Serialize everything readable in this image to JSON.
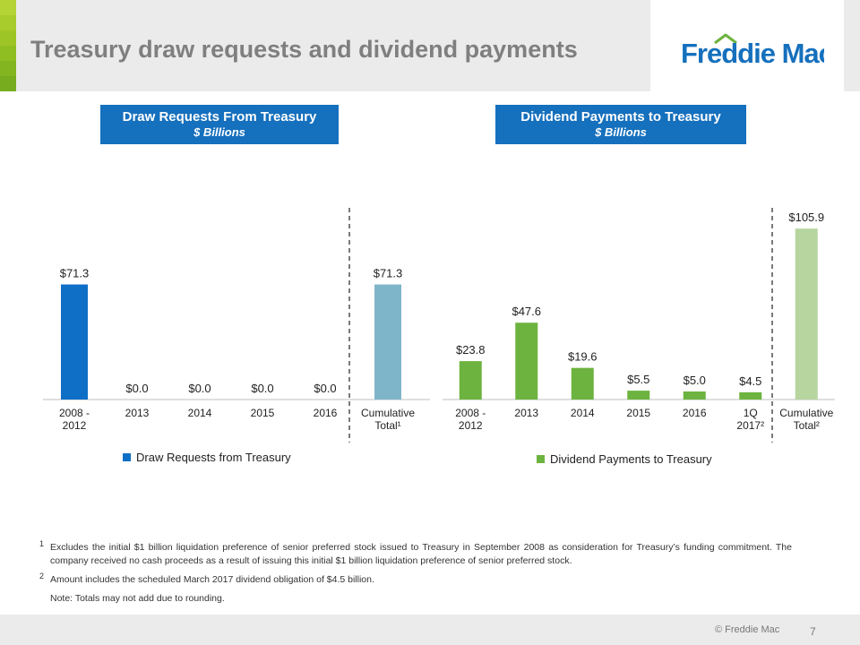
{
  "header": {
    "title": "Treasury draw requests and dividend payments",
    "brand": "Freddie Mac",
    "accent_colors": [
      "#b5d334",
      "#a8cc2b",
      "#9dc525",
      "#8fbe22",
      "#83b520",
      "#76ac1e"
    ]
  },
  "sections": {
    "draw": {
      "title": "Draw Requests From Treasury",
      "subtitle": "$ Billions"
    },
    "dividend": {
      "title": "Dividend Payments to Treasury",
      "subtitle": "$ Billions"
    }
  },
  "chart_data": [
    {
      "type": "bar",
      "title": "Draw Requests From Treasury",
      "subtitle": "$ Billions",
      "categories": [
        "2008 -\n2012",
        "2013",
        "2014",
        "2015",
        "2016",
        "Cumulative\nTotal¹"
      ],
      "series": [
        {
          "name": "Draw Requests from Treasury",
          "values": [
            71.3,
            0.0,
            0.0,
            0.0,
            0.0,
            71.3
          ]
        }
      ],
      "data_labels": [
        "$71.3",
        "$0.0",
        "$0.0",
        "$0.0",
        "$0.0",
        "$71.3"
      ],
      "colors": [
        "#0f6fc6",
        "#0f6fc6",
        "#0f6fc6",
        "#0f6fc6",
        "#0f6fc6",
        "#7fb5c9"
      ],
      "legend_color": "#0f6fc6",
      "ylim": [
        0,
        106
      ],
      "legend": "bottom"
    },
    {
      "type": "bar",
      "title": "Dividend Payments to Treasury",
      "subtitle": "$ Billions",
      "categories": [
        "2008 -\n2012",
        "2013",
        "2014",
        "2015",
        "2016",
        "1Q\n2017²",
        "Cumulative\nTotal²"
      ],
      "series": [
        {
          "name": "Dividend Payments to Treasury",
          "values": [
            23.8,
            47.6,
            19.6,
            5.5,
            5.0,
            4.5,
            105.9
          ]
        }
      ],
      "data_labels": [
        "$23.8",
        "$47.6",
        "$19.6",
        "$5.5",
        "$5.0",
        "$4.5",
        "$105.9"
      ],
      "colors": [
        "#6db33f",
        "#6db33f",
        "#6db33f",
        "#6db33f",
        "#6db33f",
        "#6db33f",
        "#b6d59f"
      ],
      "legend_color": "#6db33f",
      "ylim": [
        0,
        106
      ],
      "legend": "bottom"
    }
  ],
  "footnotes": [
    {
      "mark": "1",
      "text": "Excludes the initial $1 billion liquidation preference of senior preferred stock issued to Treasury in September 2008 as consideration for Treasury’s funding commitment.  The company received no cash proceeds as a result of issuing this initial $1 billion liquidation preference of senior preferred stock."
    },
    {
      "mark": "2",
      "text": "Amount includes the scheduled March 2017 dividend obligation of $4.5 billion."
    },
    {
      "mark": "",
      "text": "Note: Totals may not add due to rounding."
    }
  ],
  "footer": {
    "copyright": "©  Freddie Mac",
    "page_number": "7"
  }
}
